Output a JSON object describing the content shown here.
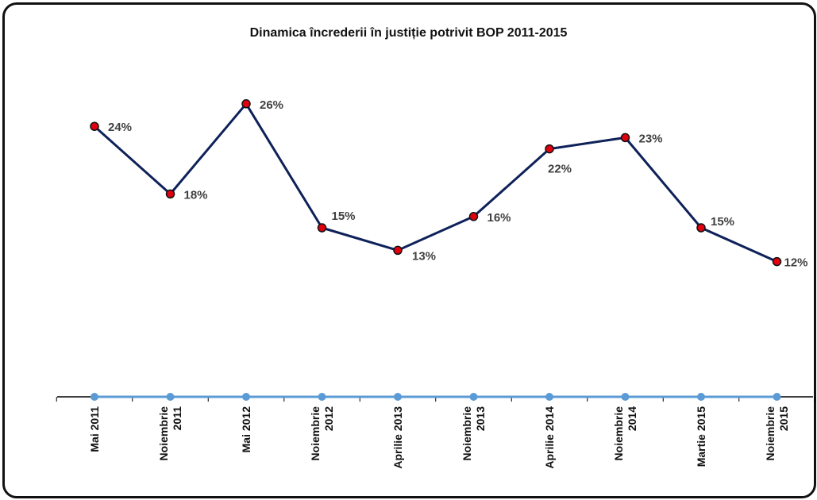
{
  "chart_data": {
    "type": "line",
    "title": "Dinamica încrederii în justiție potrivit BOP 2011-2015",
    "categories": [
      [
        "Mai 2011"
      ],
      [
        "Noiembrie",
        "2011"
      ],
      [
        "Mai 2012"
      ],
      [
        "Noiembrie",
        "2012"
      ],
      [
        "Aprilie 2013"
      ],
      [
        "Noiembrie",
        "2013"
      ],
      [
        "Aprilie 2014"
      ],
      [
        "Noiembrie",
        "2014"
      ],
      [
        "Martie 2015"
      ],
      [
        "Noiembrie",
        "2015"
      ]
    ],
    "series": [
      {
        "values": [
          24,
          18,
          26,
          15,
          13,
          16,
          22,
          23,
          15,
          12
        ],
        "labels": [
          "24%",
          "18%",
          "26%",
          "15%",
          "13%",
          "16%",
          "22%",
          "23%",
          "15%",
          "12%"
        ],
        "color": "#0e2159",
        "marker_color": "#e00010"
      }
    ],
    "ylim": [
      0,
      26
    ],
    "grid": false,
    "legend": "none",
    "baseline_color": "#5b9bd5"
  }
}
